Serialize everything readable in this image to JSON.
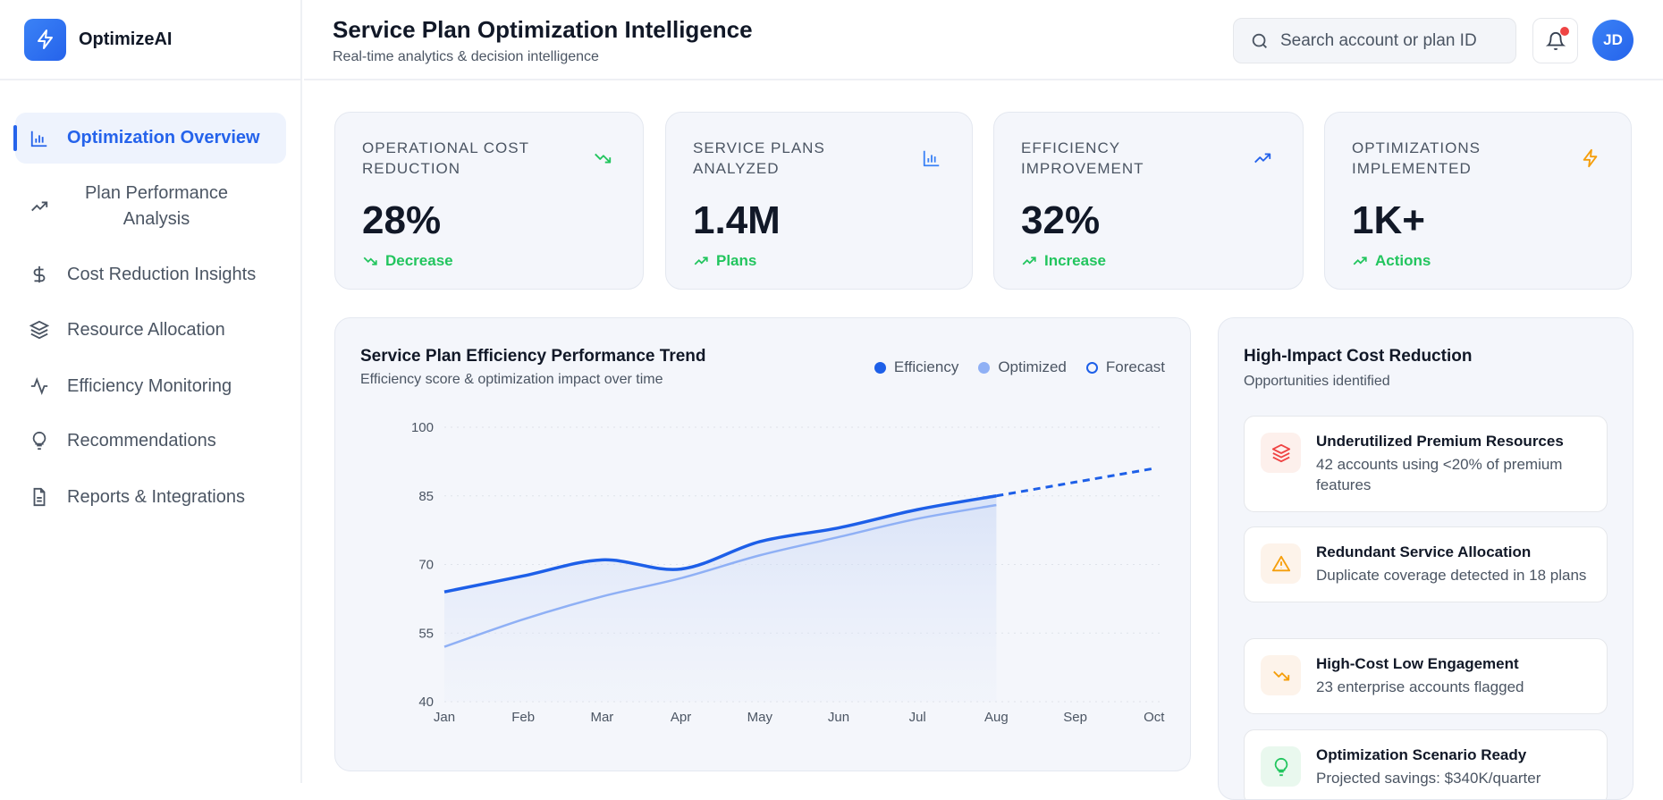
{
  "app": {
    "name": "OptimizeAI",
    "logo_icon": "lightning-icon"
  },
  "sidebar": {
    "items": [
      {
        "label": "Optimization Overview",
        "icon": "bar-chart-icon",
        "active": true
      },
      {
        "label": "Plan Performance Analysis",
        "icon": "trending-up-icon"
      },
      {
        "label": "Cost Reduction Insights",
        "icon": "dollar-icon"
      },
      {
        "label": "Resource Allocation",
        "icon": "layers-icon"
      },
      {
        "label": "Efficiency Monitoring",
        "icon": "activity-icon"
      },
      {
        "label": "Recommendations",
        "icon": "lightbulb-icon"
      },
      {
        "label": "Reports & Integrations",
        "icon": "file-icon"
      }
    ]
  },
  "header": {
    "title": "Service Plan Optimization Intelligence",
    "subtitle": "Real-time analytics & decision intelligence",
    "search_placeholder": "Search account or plan ID",
    "avatar_initials": "JD",
    "notification_dot": true
  },
  "kpis": [
    {
      "label": "OPERATIONAL COST REDUCTION",
      "value": "28%",
      "trend": "Decrease",
      "icon": "trending-down-icon",
      "icon_color": "#22c55e"
    },
    {
      "label": "SERVICE PLANS ANALYZED",
      "value": "1.4M",
      "trend": "Plans",
      "icon": "bar-chart-icon",
      "icon_color": "#3b82f6"
    },
    {
      "label": "EFFICIENCY IMPROVEMENT",
      "value": "32%",
      "trend": "Increase",
      "icon": "trending-up-icon",
      "icon_color": "#2563eb"
    },
    {
      "label": "OPTIMIZATIONS IMPLEMENTED",
      "value": "1K+",
      "trend": "Actions",
      "icon": "lightning-icon",
      "icon_color": "#f59e0b"
    }
  ],
  "chart_data": {
    "type": "line",
    "title": "Service Plan Efficiency Performance Trend",
    "subtitle": "Efficiency score & optimization impact over time",
    "categories": [
      "Jan",
      "Feb",
      "Mar",
      "Apr",
      "May",
      "Jun",
      "Jul",
      "Aug",
      "Sep",
      "Oct"
    ],
    "yticks": [
      100,
      85,
      70,
      55,
      40
    ],
    "ylim": [
      40,
      100
    ],
    "grid": true,
    "legend_placement": "top-right",
    "series": [
      {
        "name": "Efficiency",
        "color": "#1d5fe8",
        "values": [
          64,
          67.5,
          71,
          69,
          75,
          78,
          82,
          85,
          null,
          null
        ]
      },
      {
        "name": "Optimized",
        "color": "#8fb0f5",
        "values": [
          52,
          58,
          63,
          67,
          72,
          76,
          80,
          83,
          null,
          null
        ]
      },
      {
        "name": "Forecast",
        "color": "#1d5fe8",
        "values": [
          null,
          null,
          null,
          null,
          null,
          null,
          null,
          85,
          88,
          91
        ]
      }
    ]
  },
  "opportunities": {
    "title": "High-Impact Cost Reduction",
    "subtitle": "Opportunities identified",
    "items": [
      {
        "title": "Underutilized Premium Resources",
        "desc": "42 accounts using <20% of premium features",
        "icon": "layers-icon",
        "color": "#ef4444",
        "bg": "#fdf0ec"
      },
      {
        "title": "Redundant Service Allocation",
        "desc": "Duplicate coverage detected in 18 plans",
        "icon": "warning-icon",
        "color": "#f59e0b",
        "bg": "#fdf3ea"
      },
      {
        "title": "High-Cost Low Engagement",
        "desc": "23 enterprise accounts flagged",
        "icon": "trending-down-icon",
        "color": "#f59e0b",
        "bg": "#fdf3ea"
      },
      {
        "title": "Optimization Scenario Ready",
        "desc": "Projected savings: $340K/quarter",
        "icon": "lightbulb-icon",
        "color": "#22c55e",
        "bg": "#e9f8ee"
      }
    ]
  }
}
